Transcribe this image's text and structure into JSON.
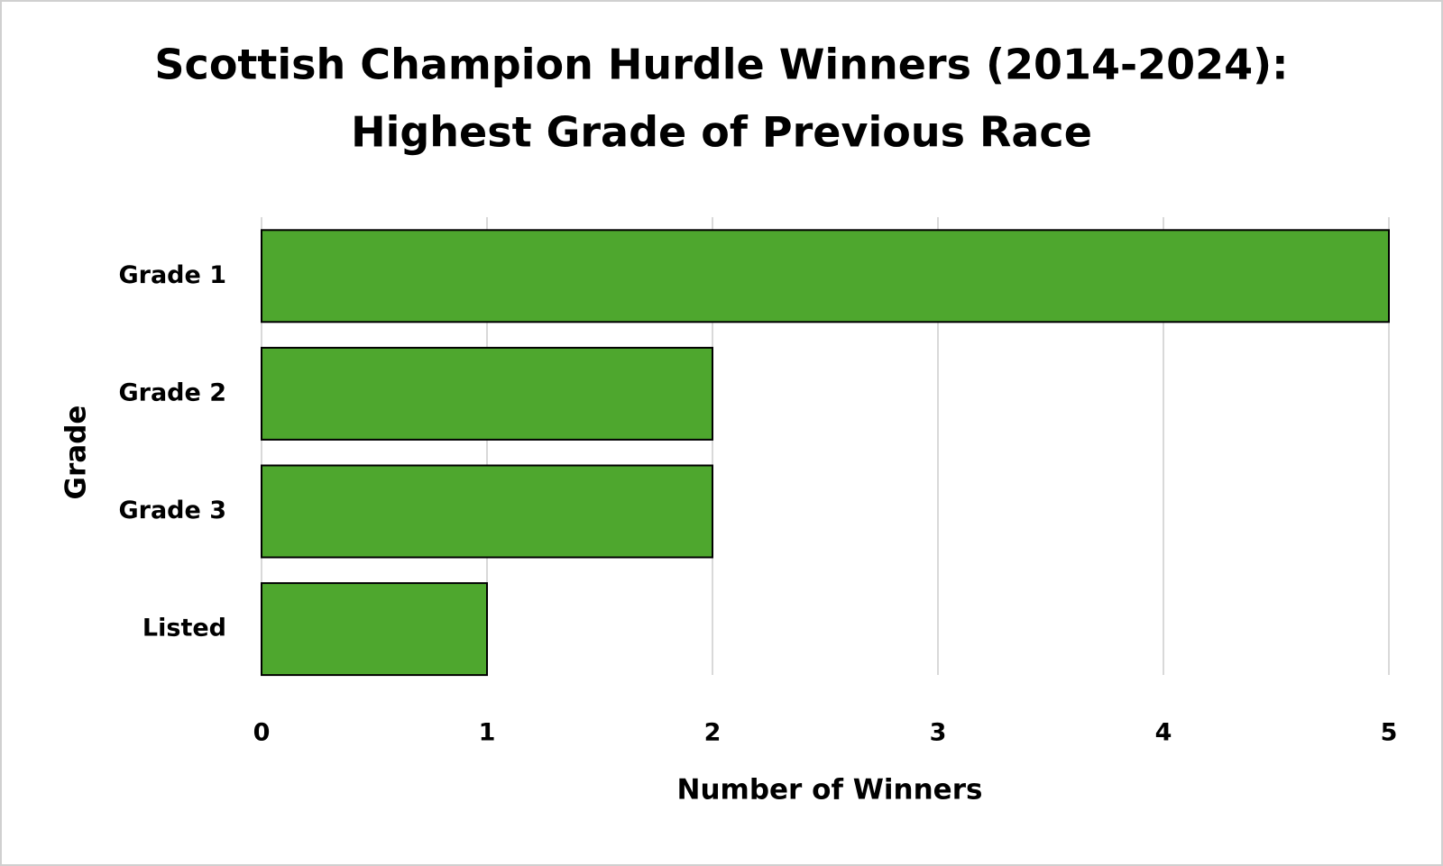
{
  "chart_data": {
    "type": "bar",
    "orientation": "horizontal",
    "title": [
      "Scottish Champion Hurdle Winners (2014-2024):",
      "Highest Grade of Previous Race"
    ],
    "x_label": "Number of Winners",
    "y_label": "Grade",
    "categories": [
      "Grade 1",
      "Grade 2",
      "Grade 3",
      "Listed"
    ],
    "values": [
      5,
      2,
      2,
      1
    ],
    "color": "#4ea72e",
    "xlim": [
      0,
      5
    ],
    "xticks": [
      0,
      1,
      2,
      3,
      4,
      5
    ],
    "grid": true
  }
}
